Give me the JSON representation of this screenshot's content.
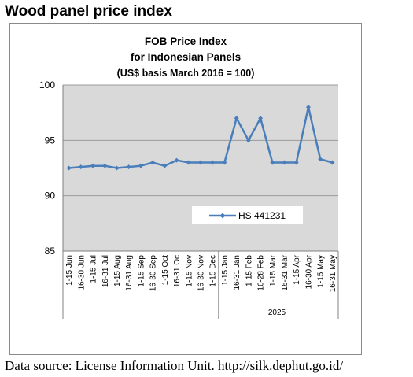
{
  "heading": "Wood panel price index",
  "source_note": "Data source: License Information Unit. http://silk.dephut.go.id/",
  "chart_data": {
    "type": "line",
    "title_lines": [
      "FOB Price Index",
      "for Indonesian Panels"
    ],
    "subtitle": "(US$ basis March 2016 = 100)",
    "categories": [
      "1-15 Jun",
      "16-30 Jun",
      "1-15 Jul",
      "16-31 Jul",
      "1-15 Aug",
      "16-31 Aug",
      "1-15 Sep",
      "16-30 Sep",
      "1-15 Oct",
      "16-31 Oc",
      "1-15 Nov",
      "16-30 Nov",
      "1-15 Dec",
      "1-15 Jan",
      "16-31 Jan",
      "1-15 Feb",
      "16-28 Feb",
      "1-15 Mar",
      "16-31 Mar",
      "1-15 Apr",
      "16-30 Apr",
      "1-15 May",
      "16-31 May"
    ],
    "group_label": "2025",
    "group_start_index": 13,
    "series": [
      {
        "name": "HS 441231",
        "values": [
          92.5,
          92.6,
          92.7,
          92.7,
          92.5,
          92.6,
          92.7,
          93.0,
          92.7,
          93.2,
          93.0,
          93.0,
          93.0,
          93.0,
          97.0,
          95.0,
          97.0,
          93.0,
          93.0,
          93.0,
          98.0,
          93.3,
          93.0
        ]
      }
    ],
    "yticks": [
      85,
      90,
      95,
      100
    ],
    "ylim": [
      85,
      100
    ],
    "grid": true,
    "legend_position": "inside-lower-right",
    "colors": {
      "line": "#4a7ebb",
      "plot_bg": "#d9d9d9",
      "grid": "#9a9a9a"
    }
  }
}
